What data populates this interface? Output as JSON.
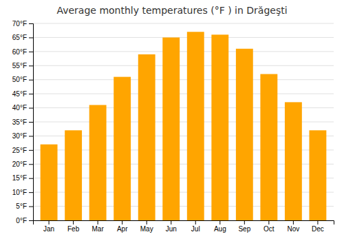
{
  "chart_data": {
    "type": "bar",
    "title": "Average monthly temperatures (°F ) in Drăgeşti",
    "categories": [
      "Jan",
      "Feb",
      "Mar",
      "Apr",
      "May",
      "Jun",
      "Jul",
      "Aug",
      "Sep",
      "Oct",
      "Nov",
      "Dec"
    ],
    "values": [
      27,
      32,
      41,
      51,
      59,
      65,
      67,
      66,
      61,
      52,
      42,
      32
    ],
    "color": "#FFA500",
    "ylim": [
      0,
      70
    ],
    "yticks": [
      {
        "value": 0,
        "label": "0°F"
      },
      {
        "value": 5,
        "label": "5°F"
      },
      {
        "value": 10,
        "label": "10°F"
      },
      {
        "value": 15,
        "label": "15°F"
      },
      {
        "value": 20,
        "label": "20°F"
      },
      {
        "value": 25,
        "label": "25°F"
      },
      {
        "value": 30,
        "label": "30°F"
      },
      {
        "value": 35,
        "label": "35°F"
      },
      {
        "value": 40,
        "label": "40°F"
      },
      {
        "value": 45,
        "label": "45°F"
      },
      {
        "value": 50,
        "label": "50°F"
      },
      {
        "value": 55,
        "label": "55°F"
      },
      {
        "value": 60,
        "label": "60°F"
      },
      {
        "value": 65,
        "label": "65°F"
      },
      {
        "value": 70,
        "label": "70°F"
      }
    ],
    "grid": true
  }
}
